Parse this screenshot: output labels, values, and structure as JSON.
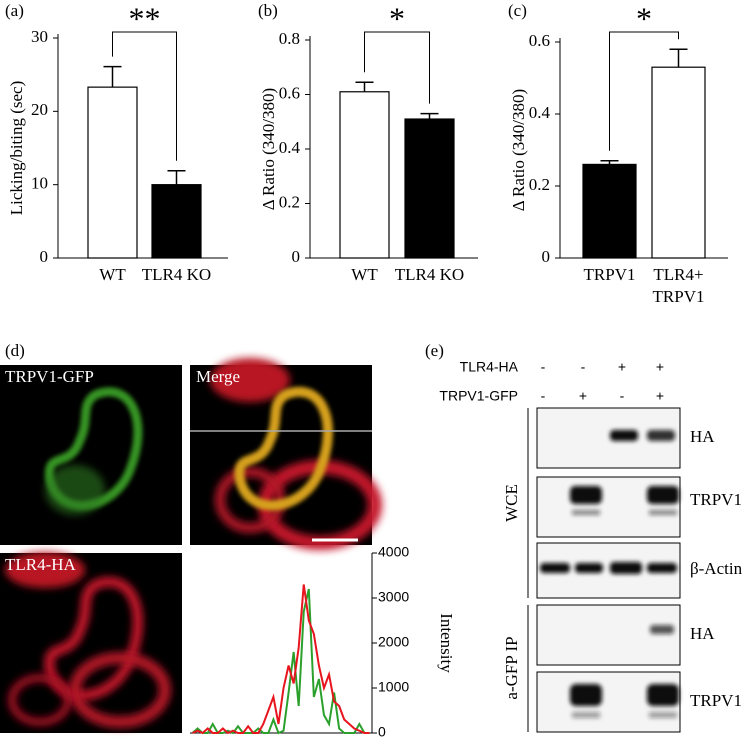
{
  "chart_data": [
    {
      "type": "bar",
      "panel": "(a)",
      "ylabel": "Licking/biting (sec)",
      "categories": [
        "WT",
        "TLR4 KO"
      ],
      "values": [
        23.3,
        10
      ],
      "errors": [
        2.8,
        1.9
      ],
      "colors": [
        "#ffffff",
        "#000000"
      ],
      "ylim": [
        0,
        30
      ],
      "yticks": [
        0,
        10,
        20,
        30
      ],
      "significance": "**"
    },
    {
      "type": "bar",
      "panel": "(b)",
      "ylabel": "Δ Ratio (340/380)",
      "categories": [
        "WT",
        "TLR4 KO"
      ],
      "values": [
        0.61,
        0.51
      ],
      "errors": [
        0.035,
        0.02
      ],
      "colors": [
        "#ffffff",
        "#000000"
      ],
      "ylim": [
        0,
        0.8
      ],
      "yticks": [
        0,
        0.2,
        0.4,
        0.6,
        0.8
      ],
      "significance": "*"
    },
    {
      "type": "bar",
      "panel": "(c)",
      "ylabel": "Δ Ratio (340/380)",
      "categories": [
        "TRPV1",
        "TLR4+ TRPV1"
      ],
      "values": [
        0.26,
        0.53
      ],
      "errors": [
        0.01,
        0.05
      ],
      "colors": [
        "#000000",
        "#ffffff"
      ],
      "ylim": [
        0,
        0.6
      ],
      "yticks": [
        0,
        0.2,
        0.4,
        0.6
      ],
      "significance": "*"
    },
    {
      "type": "line",
      "ylabel": "Intensity",
      "categories": [
        null,
        null,
        null,
        null,
        null,
        null,
        null,
        null,
        null,
        null,
        null,
        null,
        null,
        null,
        null,
        null,
        null,
        null,
        null,
        null,
        null,
        null,
        null,
        null,
        null,
        null,
        null,
        null,
        null,
        null,
        null,
        null,
        null,
        null,
        null,
        null
      ],
      "series": [
        {
          "name": "TRPV1-GFP",
          "color": "#2ca02c",
          "values": [
            0,
            100,
            0,
            0,
            200,
            0,
            0,
            50,
            0,
            150,
            0,
            0,
            0,
            100,
            0,
            0,
            300,
            0,
            50,
            900,
            1800,
            600,
            2700,
            3200,
            800,
            1200,
            400,
            200,
            900,
            100,
            0,
            0,
            0,
            200,
            0,
            0
          ]
        },
        {
          "name": "TLR4-HA",
          "color": "#e8141e",
          "values": [
            0,
            50,
            0,
            100,
            0,
            0,
            100,
            0,
            50,
            0,
            0,
            150,
            0,
            0,
            200,
            500,
            800,
            200,
            1000,
            1500,
            1100,
            1900,
            3300,
            2500,
            2200,
            1500,
            1000,
            1300,
            700,
            600,
            300,
            200,
            100,
            50,
            0,
            0
          ]
        }
      ],
      "ylim": [
        0,
        4000
      ],
      "yticks": [
        0,
        1000,
        2000,
        3000,
        4000
      ]
    }
  ],
  "microscopy": {
    "panel": "(d)",
    "labels": [
      "TRPV1-GFP",
      "Merge",
      "TLR4-HA"
    ]
  },
  "blot": {
    "panel": "(e)",
    "conditions": [
      {
        "name": "TLR4-HA",
        "signs": [
          "-",
          "-",
          "+",
          "+"
        ]
      },
      {
        "name": "TRPV1-GFP",
        "signs": [
          "-",
          "+",
          "-",
          "+"
        ]
      }
    ],
    "groups": [
      "WCE",
      "a-GFP IP"
    ],
    "bands": [
      "HA",
      "TRPV1",
      "β-Actin",
      "HA",
      "TRPV1"
    ]
  }
}
